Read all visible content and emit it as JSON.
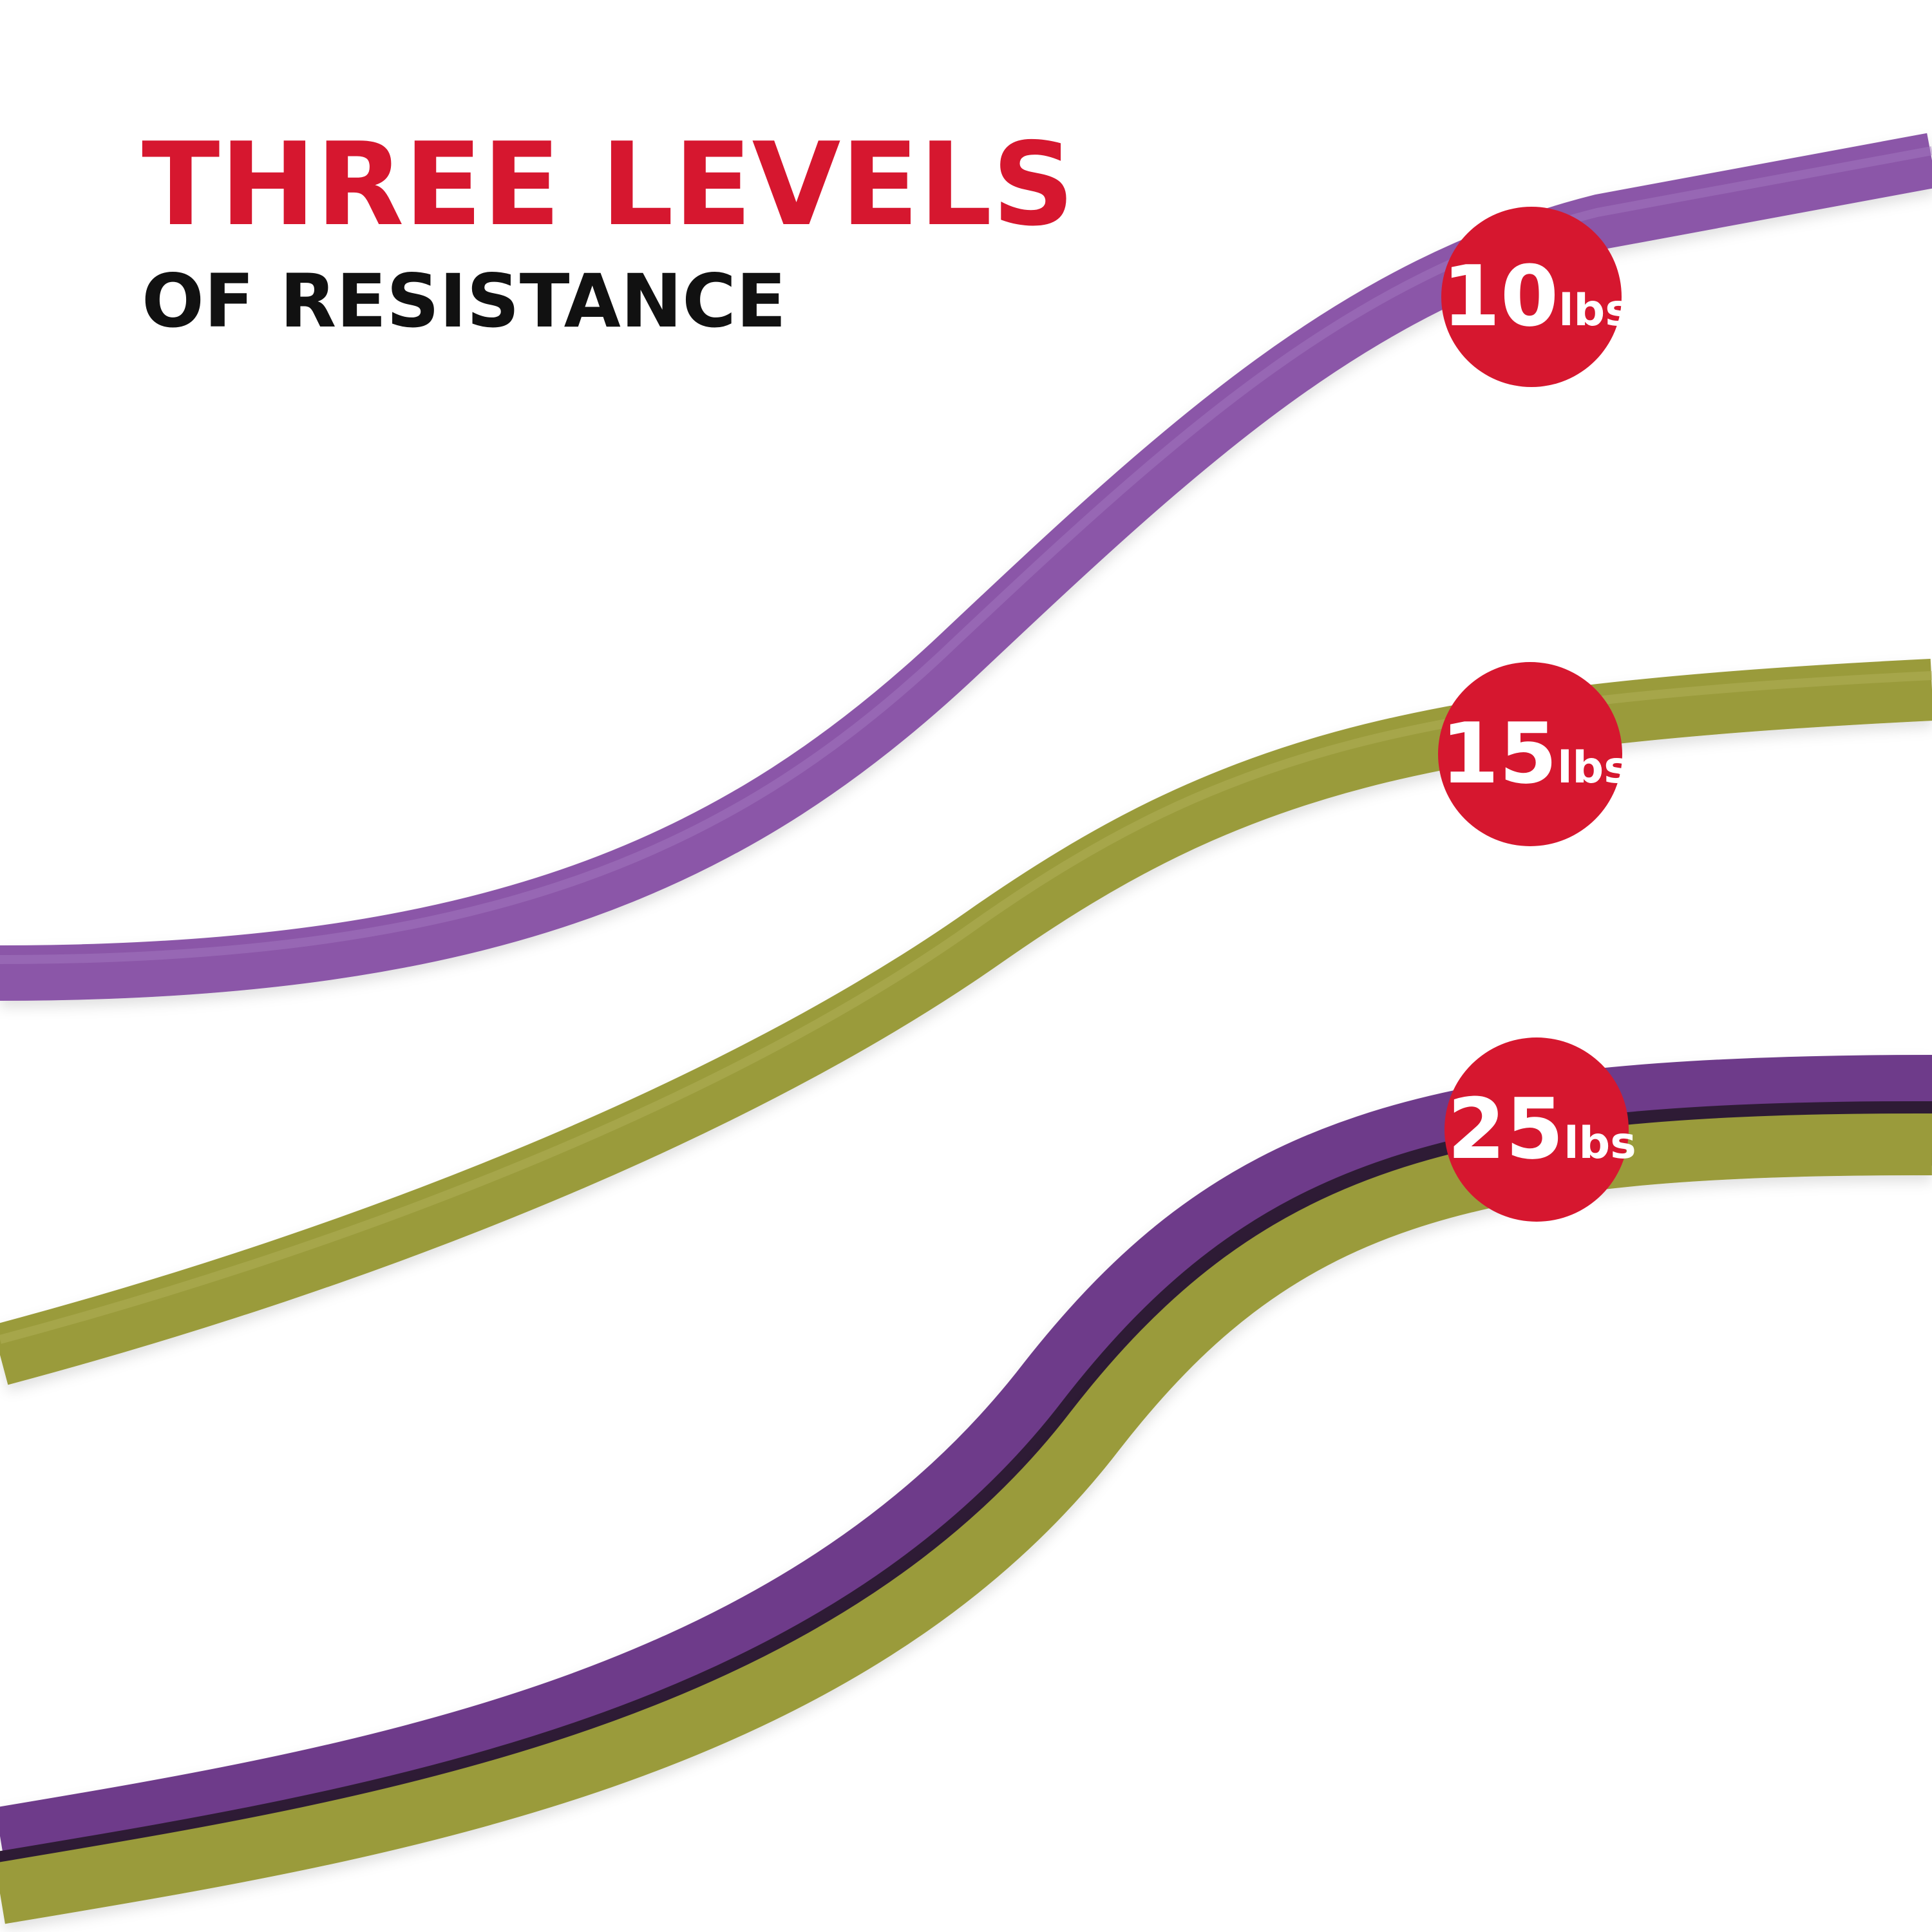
{
  "header": {
    "title": "THREE LEVELS",
    "subtitle": "OF RESISTANCE"
  },
  "badges": [
    {
      "number": "10",
      "unit": "lbs"
    },
    {
      "number": "15",
      "unit": "lbs"
    },
    {
      "number": "25",
      "unit": "lbs"
    }
  ]
}
